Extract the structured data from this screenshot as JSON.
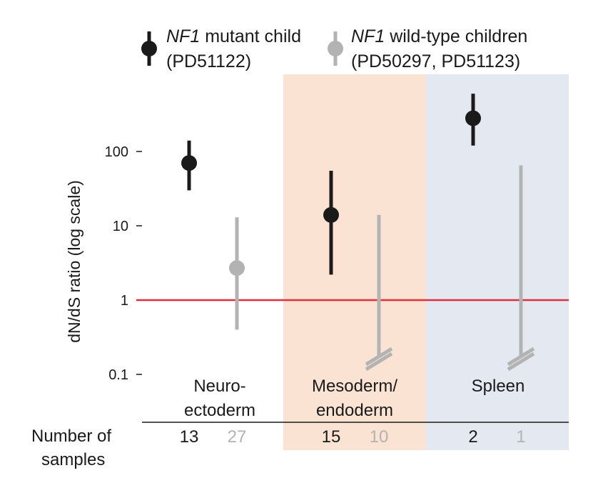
{
  "legend": {
    "mutant": {
      "gene": "NF1",
      "label": "mutant child",
      "samples": "(PD51122)",
      "color": "#1a1a1a"
    },
    "wildtype": {
      "gene": "NF1",
      "label": "wild-type children",
      "samples": "(PD50297, PD51123)",
      "color": "#b3b3b3"
    }
  },
  "counts_label": [
    "Number of",
    "samples"
  ],
  "colors": {
    "mutant": "#1a1a1a",
    "wildtype": "#b3b3b3",
    "reference_line": "#e0303a",
    "mesoderm_bg": "#fbe3d4",
    "spleen_bg": "#e3e8f1"
  },
  "chart_data": {
    "type": "scatter",
    "y_scale": "log",
    "ylim": [
      0.1,
      1000
    ],
    "ylabel": "dN/dS ratio (log scale)",
    "yticks": [
      {
        "value": 0.1,
        "label": "0.1"
      },
      {
        "value": 1,
        "label": "1"
      },
      {
        "value": 10,
        "label": "10"
      },
      {
        "value": 100,
        "label": "100"
      }
    ],
    "reference_line": 1,
    "categories": [
      {
        "name_lines": [
          "Neuro-",
          "ectoderm"
        ],
        "background": "none"
      },
      {
        "name_lines": [
          "Mesoderm/",
          "endoderm"
        ],
        "background": "mesoderm"
      },
      {
        "name_lines": [
          "Spleen"
        ],
        "background": "spleen"
      }
    ],
    "series": [
      {
        "name": "NF1 mutant child (PD51122)",
        "color": "#1a1a1a",
        "points": [
          {
            "category": 0,
            "y": 70,
            "low": 30,
            "high": 140,
            "n": "13"
          },
          {
            "category": 1,
            "y": 14,
            "low": 2.2,
            "high": 55,
            "n": "15"
          },
          {
            "category": 2,
            "y": 280,
            "low": 120,
            "high": 600,
            "n": "2"
          }
        ]
      },
      {
        "name": "NF1 wild-type children (PD50297, PD51123)",
        "color": "#b3b3b3",
        "points": [
          {
            "category": 0,
            "y": 2.7,
            "low": 0.4,
            "high": 13,
            "n": "27"
          },
          {
            "category": 1,
            "y": null,
            "low": null,
            "high": 14,
            "n": "10"
          },
          {
            "category": 2,
            "y": null,
            "low": null,
            "high": 65,
            "n": "1"
          }
        ]
      }
    ]
  }
}
